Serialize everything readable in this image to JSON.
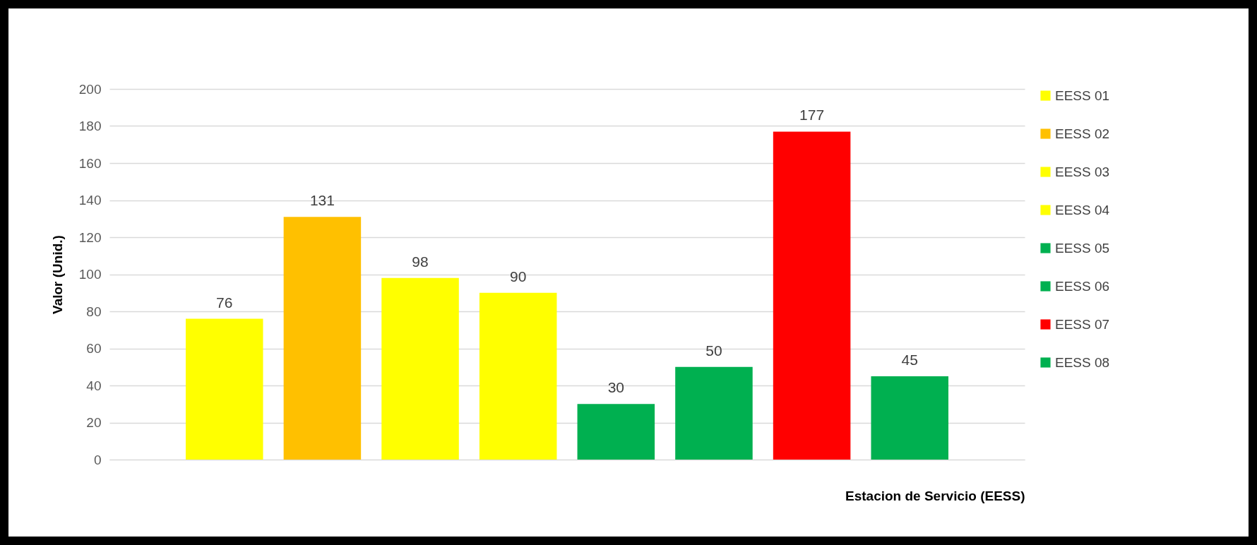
{
  "chart_data": {
    "type": "bar",
    "xlabel": "Estacion de Servicio (EESS)",
    "ylabel": "Valor (Unid.)",
    "categories": [
      null
    ],
    "series": [
      {
        "name": "EESS 01",
        "color": "#ffff00",
        "values": [
          76
        ]
      },
      {
        "name": "EESS 02",
        "color": "#ffc000",
        "values": [
          131
        ]
      },
      {
        "name": "EESS 03",
        "color": "#ffff00",
        "values": [
          98
        ]
      },
      {
        "name": "EESS 04",
        "color": "#ffff00",
        "values": [
          90
        ]
      },
      {
        "name": "EESS 05",
        "color": "#00b050",
        "values": [
          30
        ]
      },
      {
        "name": "EESS 06",
        "color": "#00b050",
        "values": [
          50
        ]
      },
      {
        "name": "EESS 07",
        "color": "#ff0000",
        "values": [
          177
        ]
      },
      {
        "name": "EESS 08",
        "color": "#00b050",
        "values": [
          45
        ]
      }
    ],
    "ylim": [
      0,
      200
    ],
    "yticks": [
      0,
      20,
      40,
      60,
      80,
      100,
      120,
      140,
      160,
      180,
      200
    ],
    "grid": "y",
    "legend": "right",
    "data_labels": true
  }
}
